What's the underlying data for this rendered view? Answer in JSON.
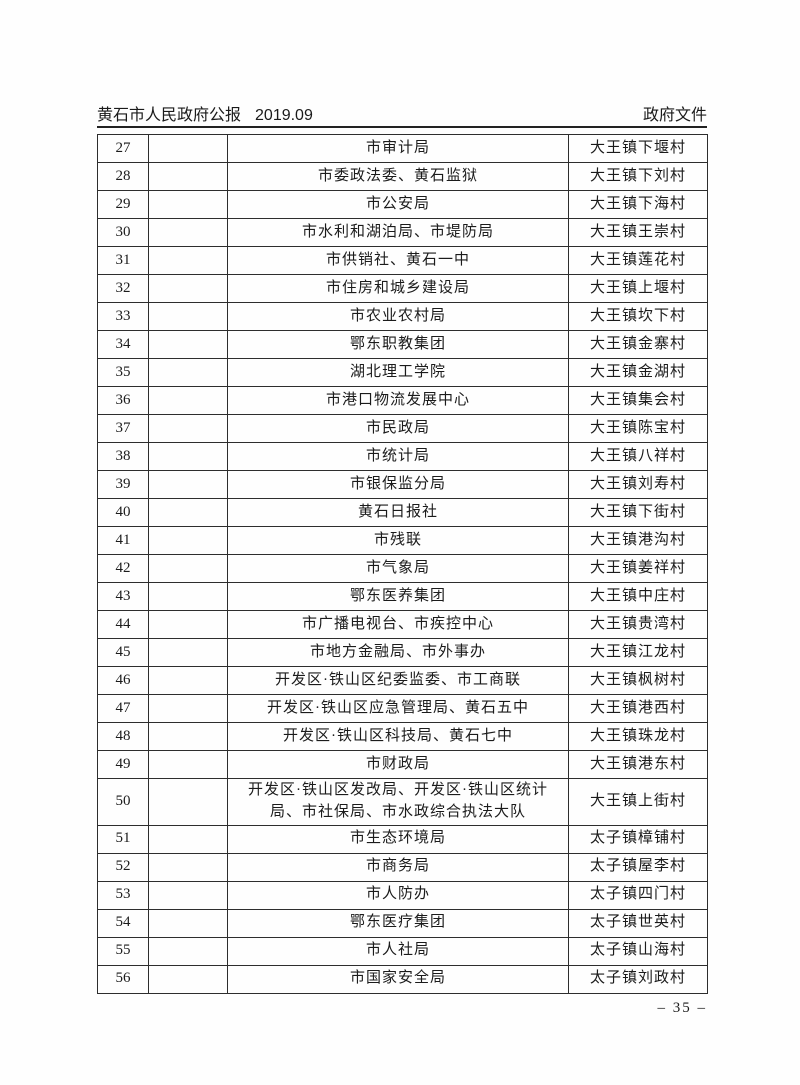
{
  "header": {
    "gazette_title": "黄石市人民政府公报",
    "issue": "2019.09",
    "section": "政府文件"
  },
  "footer": {
    "page_number": "– 35 –"
  },
  "table": {
    "rows": [
      {
        "no": "27",
        "org": "市审计局",
        "village": "大王镇下堰村"
      },
      {
        "no": "28",
        "org": "市委政法委、黄石监狱",
        "village": "大王镇下刘村"
      },
      {
        "no": "29",
        "org": "市公安局",
        "village": "大王镇下海村"
      },
      {
        "no": "30",
        "org": "市水利和湖泊局、市堤防局",
        "village": "大王镇王崇村"
      },
      {
        "no": "31",
        "org": "市供销社、黄石一中",
        "village": "大王镇莲花村"
      },
      {
        "no": "32",
        "org": "市住房和城乡建设局",
        "village": "大王镇上堰村"
      },
      {
        "no": "33",
        "org": "市农业农村局",
        "village": "大王镇坎下村"
      },
      {
        "no": "34",
        "org": "鄂东职教集团",
        "village": "大王镇金寨村"
      },
      {
        "no": "35",
        "org": "湖北理工学院",
        "village": "大王镇金湖村"
      },
      {
        "no": "36",
        "org": "市港口物流发展中心",
        "village": "大王镇集会村"
      },
      {
        "no": "37",
        "org": "市民政局",
        "village": "大王镇陈宝村"
      },
      {
        "no": "38",
        "org": "市统计局",
        "village": "大王镇八祥村"
      },
      {
        "no": "39",
        "org": "市银保监分局",
        "village": "大王镇刘寿村"
      },
      {
        "no": "40",
        "org": "黄石日报社",
        "village": "大王镇下街村"
      },
      {
        "no": "41",
        "org": "市残联",
        "village": "大王镇港沟村"
      },
      {
        "no": "42",
        "org": "市气象局",
        "village": "大王镇姜祥村"
      },
      {
        "no": "43",
        "org": "鄂东医养集团",
        "village": "大王镇中庄村"
      },
      {
        "no": "44",
        "org": "市广播电视台、市疾控中心",
        "village": "大王镇贵湾村"
      },
      {
        "no": "45",
        "org": "市地方金融局、市外事办",
        "village": "大王镇江龙村"
      },
      {
        "no": "46",
        "org": "开发区·铁山区纪委监委、市工商联",
        "village": "大王镇枫树村"
      },
      {
        "no": "47",
        "org": "开发区·铁山区应急管理局、黄石五中",
        "village": "大王镇港西村"
      },
      {
        "no": "48",
        "org": "开发区·铁山区科技局、黄石七中",
        "village": "大王镇珠龙村"
      },
      {
        "no": "49",
        "org": "市财政局",
        "village": "大王镇港东村"
      },
      {
        "no": "50",
        "org": "开发区·铁山区发改局、开发区·铁山区统计局、市社保局、市水政综合执法大队",
        "village": "大王镇上街村"
      },
      {
        "no": "51",
        "org": "市生态环境局",
        "village": "太子镇樟铺村"
      },
      {
        "no": "52",
        "org": "市商务局",
        "village": "太子镇屋李村"
      },
      {
        "no": "53",
        "org": "市人防办",
        "village": "太子镇四门村"
      },
      {
        "no": "54",
        "org": "鄂东医疗集团",
        "village": "太子镇世英村"
      },
      {
        "no": "55",
        "org": "市人社局",
        "village": "太子镇山海村"
      },
      {
        "no": "56",
        "org": "市国家安全局",
        "village": "太子镇刘政村"
      }
    ]
  }
}
